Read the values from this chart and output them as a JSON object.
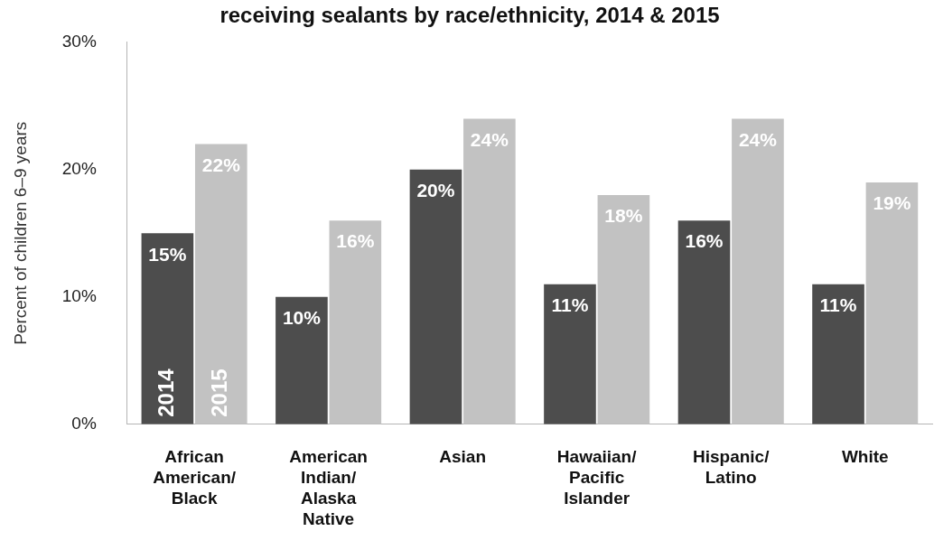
{
  "chart_data": {
    "type": "bar",
    "title": "receiving sealants by race/ethnicity, 2014 & 2015",
    "ylabel": "Percent of children 6–9 years",
    "categories": [
      "African American/Black",
      "American Indian/Alaska Native",
      "Asian",
      "Hawaiian/Pacific Islander",
      "Hispanic/Latino",
      "White"
    ],
    "series": [
      {
        "name": "2014",
        "color": "#4d4d4d",
        "values": [
          15,
          10,
          20,
          11,
          16,
          11
        ],
        "value_labels": [
          "15%",
          "10%",
          "20%",
          "11%",
          "16%",
          "11%"
        ]
      },
      {
        "name": "2015",
        "color": "#c2c2c2",
        "values": [
          22,
          16,
          24,
          18,
          24,
          19
        ],
        "value_labels": [
          "22%",
          "16%",
          "24%",
          "18%",
          "24%",
          "19%"
        ]
      }
    ],
    "ylim": [
      0,
      30
    ],
    "yticks": [
      {
        "value": 0,
        "label": "0%"
      },
      {
        "value": 10,
        "label": "10%"
      },
      {
        "value": 20,
        "label": "20%"
      },
      {
        "value": 30,
        "label": "30%"
      }
    ],
    "grid": false,
    "legend": false
  }
}
